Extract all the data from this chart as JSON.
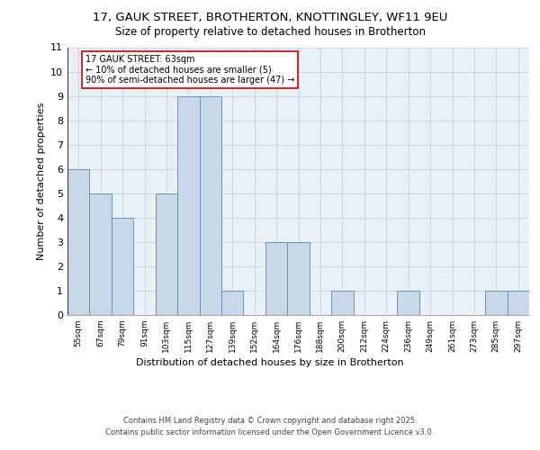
{
  "title_line1": "17, GAUK STREET, BROTHERTON, KNOTTINGLEY, WF11 9EU",
  "title_line2": "Size of property relative to detached houses in Brotherton",
  "xlabel": "Distribution of detached houses by size in Brotherton",
  "ylabel": "Number of detached properties",
  "categories": [
    "55sqm",
    "67sqm",
    "79sqm",
    "91sqm",
    "103sqm",
    "115sqm",
    "127sqm",
    "139sqm",
    "152sqm",
    "164sqm",
    "176sqm",
    "188sqm",
    "200sqm",
    "212sqm",
    "224sqm",
    "236sqm",
    "249sqm",
    "261sqm",
    "273sqm",
    "285sqm",
    "297sqm"
  ],
  "values": [
    6,
    5,
    4,
    0,
    5,
    9,
    9,
    1,
    0,
    3,
    3,
    0,
    1,
    0,
    0,
    1,
    0,
    0,
    0,
    1,
    1
  ],
  "bar_color": "#c8d8e8",
  "bar_edge_color": "#5a8ab0",
  "vline_color": "#cc0000",
  "annotation_text": "17 GAUK STREET: 63sqm\n← 10% of detached houses are smaller (5)\n90% of semi-detached houses are larger (47) →",
  "annotation_box_color": "#ffffff",
  "annotation_box_edge": "#cc0000",
  "ylim": [
    0,
    11
  ],
  "yticks": [
    0,
    1,
    2,
    3,
    4,
    5,
    6,
    7,
    8,
    9,
    10,
    11
  ],
  "background_color": "#eaf0f8",
  "footer_line1": "Contains HM Land Registry data © Crown copyright and database right 2025.",
  "footer_line2": "Contains public sector information licensed under the Open Government Licence v3.0."
}
